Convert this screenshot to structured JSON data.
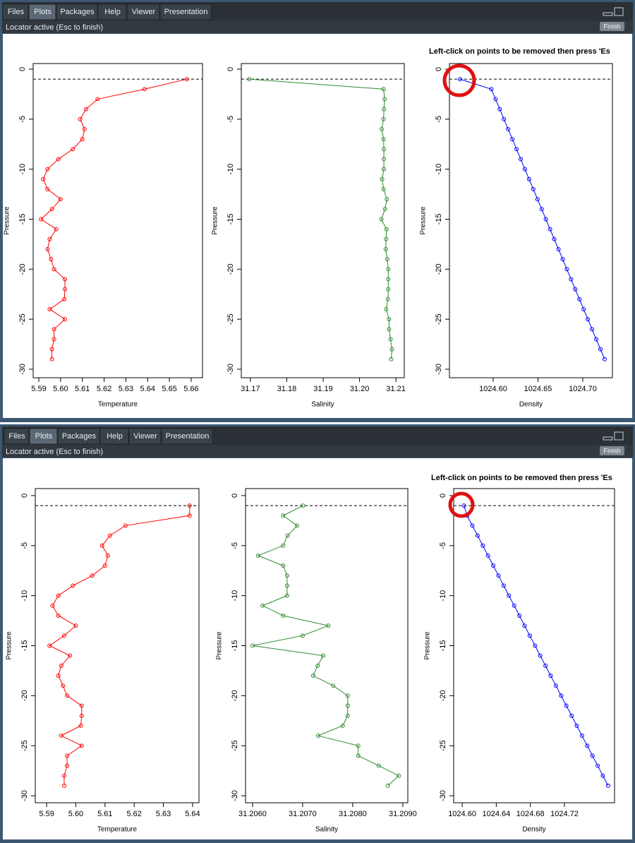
{
  "panes": [
    {
      "tabs": [
        "Files",
        "Plots",
        "Packages",
        "Help",
        "Viewer",
        "Presentation"
      ],
      "status": "Locator active (Esc to finish)",
      "button": "Finish",
      "message": "Left-click on points to be removed then press 'Es"
    },
    {
      "tabs": [
        "Files",
        "Plots",
        "Packages",
        "Help",
        "Viewer",
        "Presentation"
      ],
      "status": "Locator active (Esc to finish)",
      "button": "Finish",
      "message": "Left-click on points to be removed then press 'Es"
    }
  ],
  "chart_data": [
    {
      "type": "line",
      "xlabel": "Temperature",
      "ylabel": "Pressure",
      "color": "#ff0000",
      "x": [
        5.658,
        5.6386,
        5.617,
        5.6117,
        5.609,
        5.611,
        5.61,
        5.6056,
        5.599,
        5.594,
        5.592,
        5.594,
        5.6,
        5.596,
        5.591,
        5.598,
        5.595,
        5.594,
        5.5956,
        5.597,
        5.602,
        5.602,
        5.6017,
        5.595,
        5.602,
        5.597,
        5.597,
        5.596,
        5.596
      ],
      "values": [
        -1,
        -2,
        -3,
        -4,
        -5,
        -6,
        -7,
        -8,
        -9,
        -10,
        -11,
        -12,
        -13,
        -14,
        -15,
        -16,
        -17,
        -18,
        -19,
        -20,
        -21,
        -22,
        -23,
        -24,
        -25,
        -26,
        -27,
        -28,
        -29
      ],
      "hline": -1,
      "xlim": [
        5.5874,
        5.6652
      ],
      "ylim": [
        -30.85,
        0.56
      ],
      "xticks": [
        5.59,
        {
          "value": 5.6,
          "label": "5.60"
        },
        5.61,
        5.62,
        5.63,
        5.64,
        5.65,
        {
          "value": 5.66,
          "label": "5.66"
        }
      ],
      "yticks": [
        0,
        -5,
        -10,
        -15,
        -20,
        -25,
        -30
      ]
    },
    {
      "type": "line",
      "xlabel": "Salinity",
      "ylabel": "Pressure",
      "color": "#2e8b2e",
      "x": [
        31.1697,
        31.20661,
        31.20689,
        31.2067,
        31.20661,
        31.20611,
        31.20661,
        31.20669,
        31.20669,
        31.20669,
        31.2062,
        31.20661,
        31.20751,
        31.207,
        31.206,
        31.20741,
        31.2073,
        31.20721,
        31.20761,
        31.2079,
        31.2079,
        31.2079,
        31.2078,
        31.20731,
        31.20811,
        31.20811,
        31.20852,
        31.20892,
        31.2087
      ],
      "values": [
        -1,
        -2,
        -3,
        -4,
        -5,
        -6,
        -7,
        -8,
        -9,
        -10,
        -11,
        -12,
        -13,
        -14,
        -15,
        -16,
        -17,
        -18,
        -19,
        -20,
        -21,
        -22,
        -23,
        -24,
        -25,
        -26,
        -27,
        -28,
        -29
      ],
      "hline": -1,
      "xlim": [
        31.1675,
        31.2123
      ],
      "ylim": [
        -30.85,
        0.56
      ],
      "xticks": [
        31.17,
        31.18,
        31.19,
        {
          "value": 31.2,
          "label": "31.20"
        },
        31.21
      ],
      "yticks": [
        0,
        -5,
        -10,
        -15,
        -20,
        -25,
        -30
      ]
    },
    {
      "type": "line",
      "xlabel": "Density",
      "ylabel": "Pressure",
      "color": "#0000ff",
      "x": [
        1024.563,
        1024.598,
        1024.6027,
        1024.6074,
        1024.612,
        1024.6167,
        1024.6214,
        1024.6261,
        1024.6308,
        1024.6354,
        1024.6401,
        1024.6448,
        1024.6495,
        1024.6542,
        1024.6588,
        1024.6635,
        1024.6682,
        1024.6729,
        1024.6776,
        1024.6822,
        1024.6869,
        1024.6916,
        1024.6963,
        1024.701,
        1024.7056,
        1024.7103,
        1024.715,
        1024.7197,
        1024.7244
      ],
      "values": [
        -1,
        -2,
        -3,
        -4,
        -5,
        -6,
        -7,
        -8,
        -9,
        -10,
        -11,
        -12,
        -13,
        -14,
        -15,
        -16,
        -17,
        -18,
        -19,
        -20,
        -21,
        -22,
        -23,
        -24,
        -25,
        -26,
        -27,
        -28,
        -29
      ],
      "hline": -1,
      "xlim": [
        1024.5512,
        1024.7331
      ],
      "ylim": [
        -30.85,
        0.56
      ],
      "xticks": [
        {
          "value": 1024.6,
          "label": "1024.60"
        },
        1024.65,
        {
          "value": 1024.7,
          "label": "1024.70"
        }
      ],
      "yticks": [
        0,
        -5,
        -10,
        -15,
        -20,
        -25,
        -30
      ]
    },
    {
      "type": "line",
      "xlabel": "Temperature",
      "ylabel": "Pressure",
      "color": "#ff0000",
      "x": [
        5.639,
        5.639,
        5.617,
        5.6117,
        5.609,
        5.611,
        5.61,
        5.6056,
        5.599,
        5.594,
        5.592,
        5.594,
        5.6,
        5.596,
        5.591,
        5.598,
        5.595,
        5.594,
        5.5956,
        5.597,
        5.602,
        5.602,
        5.6017,
        5.595,
        5.602,
        5.597,
        5.597,
        5.596,
        5.596
      ],
      "values": [
        -1,
        -2,
        -3,
        -4,
        -5,
        -6,
        -7,
        -8,
        -9,
        -10,
        -11,
        -12,
        -13,
        -14,
        -15,
        -16,
        -17,
        -18,
        -19,
        -20,
        -21,
        -22,
        -23,
        -24,
        -25,
        -26,
        -27,
        -28,
        -29
      ],
      "hline": -1,
      "xlim": [
        5.5861,
        5.6422
      ],
      "ylim": [
        -30.7,
        0.7
      ],
      "xticks": [
        5.59,
        {
          "value": 5.6,
          "label": "5.60"
        },
        5.61,
        5.62,
        5.63,
        {
          "value": 5.64,
          "label": "5.64"
        }
      ],
      "yticks": [
        0,
        -5,
        -10,
        -15,
        -20,
        -25,
        -30
      ]
    },
    {
      "type": "line",
      "xlabel": "Salinity",
      "ylabel": "Pressure",
      "color": "#2e8b2e",
      "x": [
        31.20701,
        31.20661,
        31.20689,
        31.2067,
        31.20661,
        31.20611,
        31.20661,
        31.20669,
        31.20669,
        31.20669,
        31.2062,
        31.20661,
        31.20751,
        31.207,
        31.206,
        31.20741,
        31.2073,
        31.20721,
        31.20761,
        31.2079,
        31.2079,
        31.2079,
        31.2078,
        31.20731,
        31.20811,
        31.20811,
        31.20852,
        31.20892,
        31.2087
      ],
      "values": [
        -1,
        -2,
        -3,
        -4,
        -5,
        -6,
        -7,
        -8,
        -9,
        -10,
        -11,
        -12,
        -13,
        -14,
        -15,
        -16,
        -17,
        -18,
        -19,
        -20,
        -21,
        -22,
        -23,
        -24,
        -25,
        -26,
        -27,
        -28,
        -29
      ],
      "hline": -1,
      "xlim": [
        31.20586,
        31.2091
      ],
      "ylim": [
        -30.7,
        0.7
      ],
      "xticks": [
        {
          "value": 31.206,
          "label": "31.2060"
        },
        {
          "value": 31.207,
          "label": "31.2070"
        },
        {
          "value": 31.208,
          "label": "31.2080"
        },
        {
          "value": 31.209,
          "label": "31.2090"
        }
      ],
      "yticks": [
        0,
        -5,
        -10,
        -15,
        -20,
        -25,
        -30
      ]
    },
    {
      "type": "line",
      "xlabel": "Density",
      "ylabel": "Pressure",
      "color": "#0000ff",
      "x": [
        1024.602,
        1024.6058,
        1024.6119,
        1024.6181,
        1024.6242,
        1024.6303,
        1024.6364,
        1024.6426,
        1024.6487,
        1024.6548,
        1024.661,
        1024.6671,
        1024.6732,
        1024.6793,
        1024.6855,
        1024.6916,
        1024.6977,
        1024.7038,
        1024.71,
        1024.7161,
        1024.7222,
        1024.7284,
        1024.7345,
        1024.7406,
        1024.7467,
        1024.7529,
        1024.759,
        1024.7651,
        1024.7713
      ],
      "values": [
        -1,
        -2,
        -3,
        -4,
        -5,
        -6,
        -7,
        -8,
        -9,
        -10,
        -11,
        -12,
        -13,
        -14,
        -15,
        -16,
        -17,
        -18,
        -19,
        -20,
        -21,
        -22,
        -23,
        -24,
        -25,
        -26,
        -27,
        -28,
        -29
      ],
      "hline": -1,
      "xlim": [
        1024.59,
        1024.7788
      ],
      "ylim": [
        -30.7,
        0.7
      ],
      "xticks": [
        {
          "value": 1024.6,
          "label": "1024.60"
        },
        {
          "value": 1024.64,
          "label": "1024.64"
        },
        {
          "value": 1024.68,
          "label": "1024.68"
        },
        {
          "value": 1024.72,
          "label": "1024.72"
        }
      ],
      "yticks": [
        0,
        -5,
        -10,
        -15,
        -20,
        -25,
        -30
      ]
    }
  ]
}
